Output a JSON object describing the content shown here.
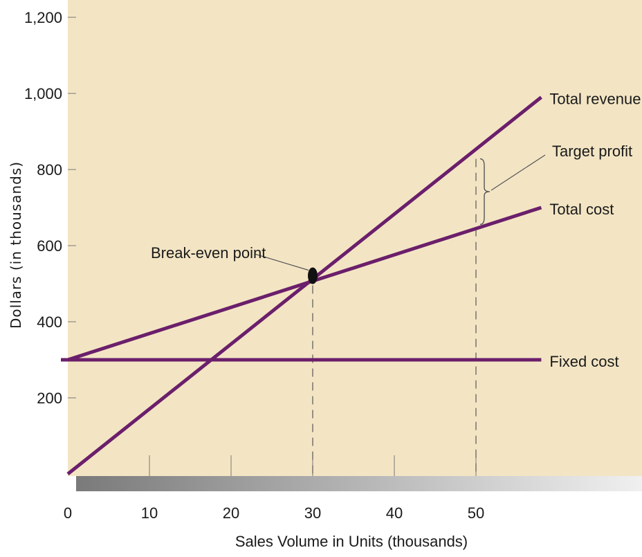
{
  "chart_data": {
    "type": "line",
    "xlabel": "Sales Volume in Units (thousands)",
    "ylabel": "Dollars (in thousands)",
    "xlim": [
      0,
      58
    ],
    "ylim": [
      0,
      1200
    ],
    "x_ticks": [
      0,
      10,
      20,
      30,
      40,
      50
    ],
    "x_tick_labels": [
      "0",
      "10",
      "20",
      "30",
      "40",
      "50"
    ],
    "y_ticks": [
      200,
      400,
      600,
      800,
      1000,
      1200
    ],
    "y_tick_labels": [
      "200",
      "400",
      "600",
      "800",
      "1,000",
      "1,200"
    ],
    "series": [
      {
        "name": "Total revenue",
        "x": [
          0,
          58
        ],
        "y": [
          0,
          990
        ]
      },
      {
        "name": "Total cost",
        "x": [
          0,
          58
        ],
        "y": [
          300,
          700
        ]
      },
      {
        "name": "Fixed cost",
        "x": [
          0,
          58
        ],
        "y": [
          300,
          300
        ]
      }
    ],
    "break_even": {
      "label": "Break-even point",
      "x": 30,
      "y": 510
    },
    "target_profit": {
      "label": "Target profit",
      "x": 50
    },
    "colors": {
      "line": "#6b1f6b",
      "background": "#f3e5c4",
      "axis_band_dark": "#7a7a7a",
      "axis_band_light": "#f0f0f0",
      "annotation": "#555555"
    }
  }
}
